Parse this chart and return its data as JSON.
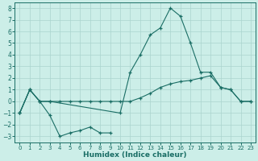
{
  "xlabel": "Humidex (Indice chaleur)",
  "background_color": "#cceee8",
  "grid_color": "#aad4ce",
  "line_color": "#1a6e65",
  "xlim": [
    -0.5,
    23.5
  ],
  "ylim": [
    -3.5,
    8.5
  ],
  "yticks": [
    -3,
    -2,
    -1,
    0,
    1,
    2,
    3,
    4,
    5,
    6,
    7,
    8
  ],
  "xticks": [
    0,
    1,
    2,
    3,
    4,
    5,
    6,
    7,
    8,
    9,
    10,
    11,
    12,
    13,
    14,
    15,
    16,
    17,
    18,
    19,
    20,
    21,
    22,
    23
  ],
  "series": [
    {
      "x": [
        0,
        1,
        2,
        3,
        10,
        11,
        12,
        13,
        14,
        15,
        16,
        17,
        18,
        19,
        20,
        21,
        22,
        23
      ],
      "y": [
        -1,
        1,
        0,
        0,
        -1,
        2.5,
        4,
        5.7,
        6.3,
        8,
        7.3,
        5,
        2.5,
        2.5,
        1.2,
        1.0,
        0,
        0
      ]
    },
    {
      "x": [
        0,
        1,
        2,
        3,
        4,
        5,
        6,
        7,
        8,
        9,
        10,
        11,
        12,
        13,
        14,
        15,
        16,
        17,
        18,
        19,
        20,
        21,
        22,
        23
      ],
      "y": [
        -1,
        1,
        0,
        0,
        0,
        0,
        0,
        0,
        0,
        0,
        0,
        0,
        0.3,
        0.7,
        1.2,
        1.5,
        1.7,
        1.8,
        2.0,
        2.2,
        1.2,
        1.0,
        0,
        0
      ]
    },
    {
      "x": [
        0,
        1,
        2,
        3,
        4,
        5,
        6,
        7,
        8,
        9
      ],
      "y": [
        -1,
        1,
        0,
        -1.2,
        -3,
        -2.7,
        -2.5,
        -2.2,
        -2.7,
        -2.7
      ]
    }
  ]
}
